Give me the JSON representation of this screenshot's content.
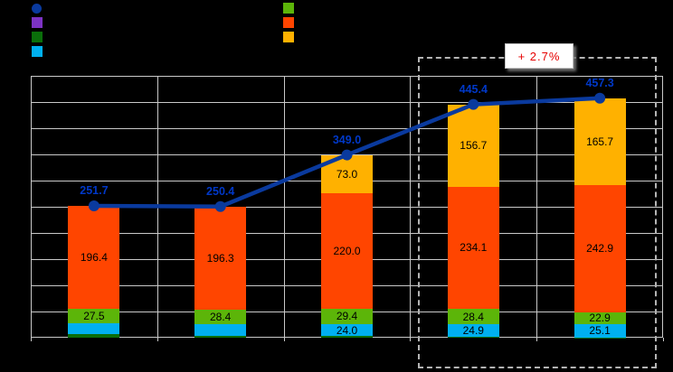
{
  "page": {
    "background": "#000000"
  },
  "annotation": {
    "delta_label": "+ 2.7%",
    "text_color": "#e60000"
  },
  "legend": {
    "left_items": [
      {
        "name": "total-line",
        "shape": "circle",
        "color": "#0a3a9e"
      },
      {
        "name": "series-purple",
        "shape": "square",
        "color": "#7d33c4"
      },
      {
        "name": "series-dark-green",
        "shape": "square",
        "color": "#0a6e0a"
      },
      {
        "name": "series-cyan",
        "shape": "square",
        "color": "#00b0f0"
      }
    ],
    "right_items": [
      {
        "name": "series-green",
        "shape": "square",
        "color": "#5cb509"
      },
      {
        "name": "series-orange",
        "shape": "square",
        "color": "#ff4500"
      },
      {
        "name": "series-amber",
        "shape": "square",
        "color": "#ffb100"
      }
    ]
  },
  "chart_data": {
    "type": "bar",
    "stacked": true,
    "grid": true,
    "categories": [
      "",
      "",
      "",
      "",
      ""
    ],
    "series": [
      {
        "name": "dark-green-sliver",
        "color": "#0a6e0a",
        "values": [
          6.3,
          4.0,
          2.6,
          1.3,
          0.7
        ],
        "labels_visible": false
      },
      {
        "name": "cyan",
        "color": "#00b0f0",
        "values": [
          21.5,
          21.7,
          24.0,
          24.9,
          25.1
        ],
        "labels_visible": true
      },
      {
        "name": "green",
        "color": "#5cb509",
        "values": [
          27.5,
          28.4,
          29.4,
          28.4,
          22.9
        ],
        "labels_visible": true
      },
      {
        "name": "orange",
        "color": "#ff4500",
        "values": [
          196.4,
          196.3,
          220.0,
          234.1,
          242.9
        ],
        "labels_visible": true
      },
      {
        "name": "amber",
        "color": "#ffb100",
        "values": [
          0,
          0,
          73.0,
          156.7,
          165.7
        ],
        "labels_visible": true
      }
    ],
    "line_series": {
      "name": "total",
      "color": "#0a3a9e",
      "label_color": "#0038c8",
      "values": [
        251.7,
        250.4,
        349.0,
        445.4,
        457.3
      ]
    },
    "ylim": [
      0,
      500
    ],
    "y_gridline_step": 50,
    "highlight_last_n_categories": 2,
    "label_format_decimals": 1
  }
}
